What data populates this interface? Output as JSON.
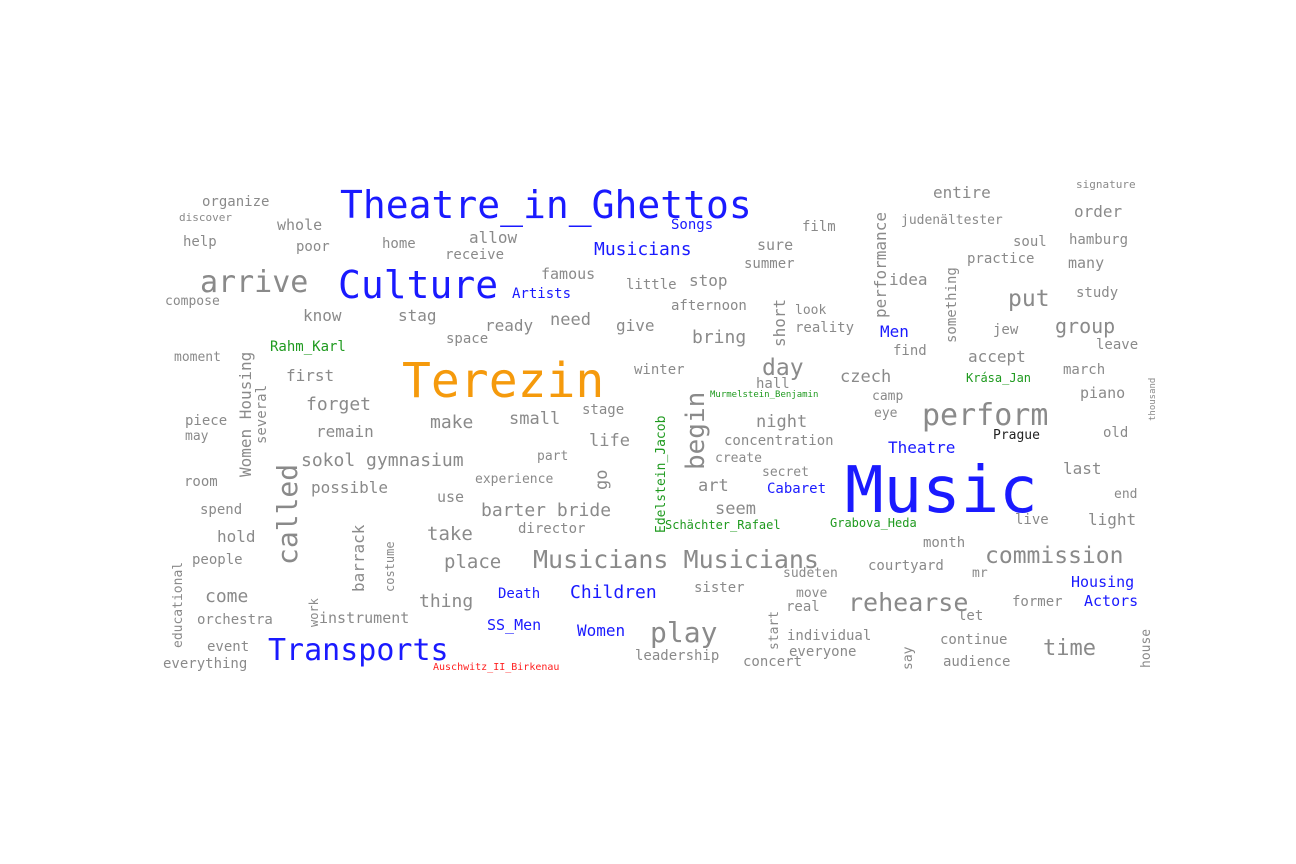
{
  "colors": {
    "background": "#ffffff",
    "plain": "#8a8a8a",
    "topic": "#1a1aff",
    "person": "#1f9a1f",
    "place_main": "#f59a0c",
    "camp": "#ff2020",
    "dark": "#222222"
  },
  "words": [
    {
      "text": "Music",
      "color": "topic"
    },
    {
      "text": "Terezin",
      "color": "place_main"
    },
    {
      "text": "Theatre_in_Ghettos",
      "color": "topic"
    },
    {
      "text": "Culture",
      "color": "topic"
    },
    {
      "text": "Transports",
      "color": "topic"
    },
    {
      "text": "arrive",
      "color": "plain"
    },
    {
      "text": "perform",
      "color": "plain"
    },
    {
      "text": "Musicians Musicians",
      "color": "plain"
    },
    {
      "text": "play",
      "color": "plain"
    },
    {
      "text": "rehearse",
      "color": "plain"
    },
    {
      "text": "commission",
      "color": "plain"
    },
    {
      "text": "called",
      "color": "plain"
    },
    {
      "text": "begin",
      "color": "plain"
    },
    {
      "text": "day",
      "color": "plain"
    },
    {
      "text": "put",
      "color": "plain"
    },
    {
      "text": "group",
      "color": "plain"
    },
    {
      "text": "time",
      "color": "plain"
    },
    {
      "text": "Musicians",
      "color": "topic"
    },
    {
      "text": "Children",
      "color": "topic"
    },
    {
      "text": "Women",
      "color": "topic"
    },
    {
      "text": "Death",
      "color": "topic"
    },
    {
      "text": "SS_Men",
      "color": "topic"
    },
    {
      "text": "Artists",
      "color": "topic"
    },
    {
      "text": "Men",
      "color": "topic"
    },
    {
      "text": "Theatre",
      "color": "topic"
    },
    {
      "text": "Cabaret",
      "color": "topic"
    },
    {
      "text": "Housing",
      "color": "topic"
    },
    {
      "text": "Actors",
      "color": "topic"
    },
    {
      "text": "Songs",
      "color": "topic"
    },
    {
      "text": "Auschwitz_II_Birkenau",
      "color": "camp"
    },
    {
      "text": "Rahm_Karl",
      "color": "person"
    },
    {
      "text": "Krása_Jan",
      "color": "person"
    },
    {
      "text": "Edelstein_Jacob",
      "color": "person"
    },
    {
      "text": "Schächter_Rafael",
      "color": "person"
    },
    {
      "text": "Grabova_Heda",
      "color": "person"
    },
    {
      "text": "Murmelstein_Benjamin",
      "color": "person"
    },
    {
      "text": "Prague",
      "color": "dark"
    },
    {
      "text": "sokol gymnasium",
      "color": "plain"
    },
    {
      "text": "barter bride",
      "color": "plain"
    },
    {
      "text": "place",
      "color": "plain"
    },
    {
      "text": "take",
      "color": "plain"
    },
    {
      "text": "thing",
      "color": "plain"
    },
    {
      "text": "come",
      "color": "plain"
    },
    {
      "text": "orchestra",
      "color": "plain"
    },
    {
      "text": "instrument",
      "color": "plain"
    },
    {
      "text": "hold",
      "color": "plain"
    },
    {
      "text": "people",
      "color": "plain"
    },
    {
      "text": "spend",
      "color": "plain"
    },
    {
      "text": "room",
      "color": "plain"
    },
    {
      "text": "piece",
      "color": "plain"
    },
    {
      "text": "may",
      "color": "plain"
    },
    {
      "text": "forget",
      "color": "plain"
    },
    {
      "text": "remain",
      "color": "plain"
    },
    {
      "text": "first",
      "color": "plain"
    },
    {
      "text": "make",
      "color": "plain"
    },
    {
      "text": "small",
      "color": "plain"
    },
    {
      "text": "life",
      "color": "plain"
    },
    {
      "text": "part",
      "color": "plain"
    },
    {
      "text": "stage",
      "color": "plain"
    },
    {
      "text": "possible",
      "color": "plain"
    },
    {
      "text": "use",
      "color": "plain"
    },
    {
      "text": "experience",
      "color": "plain"
    },
    {
      "text": "director",
      "color": "plain"
    },
    {
      "text": "art",
      "color": "plain"
    },
    {
      "text": "seem",
      "color": "plain"
    },
    {
      "text": "create",
      "color": "plain"
    },
    {
      "text": "secret",
      "color": "plain"
    },
    {
      "text": "night",
      "color": "plain"
    },
    {
      "text": "concentration",
      "color": "plain"
    },
    {
      "text": "hall",
      "color": "plain"
    },
    {
      "text": "czech",
      "color": "plain"
    },
    {
      "text": "camp",
      "color": "plain"
    },
    {
      "text": "eye",
      "color": "plain"
    },
    {
      "text": "winter",
      "color": "plain"
    },
    {
      "text": "bring",
      "color": "plain"
    },
    {
      "text": "give",
      "color": "plain"
    },
    {
      "text": "need",
      "color": "plain"
    },
    {
      "text": "ready",
      "color": "plain"
    },
    {
      "text": "space",
      "color": "plain"
    },
    {
      "text": "stag",
      "color": "plain"
    },
    {
      "text": "know",
      "color": "plain"
    },
    {
      "text": "famous",
      "color": "plain"
    },
    {
      "text": "little",
      "color": "plain"
    },
    {
      "text": "stop",
      "color": "plain"
    },
    {
      "text": "afternoon",
      "color": "plain"
    },
    {
      "text": "receive",
      "color": "plain"
    },
    {
      "text": "allow",
      "color": "plain"
    },
    {
      "text": "home",
      "color": "plain"
    },
    {
      "text": "poor",
      "color": "plain"
    },
    {
      "text": "whole",
      "color": "plain"
    },
    {
      "text": "organize",
      "color": "plain"
    },
    {
      "text": "discover",
      "color": "plain"
    },
    {
      "text": "help",
      "color": "plain"
    },
    {
      "text": "compose",
      "color": "plain"
    },
    {
      "text": "moment",
      "color": "plain"
    },
    {
      "text": "film",
      "color": "plain"
    },
    {
      "text": "sure",
      "color": "plain"
    },
    {
      "text": "summer",
      "color": "plain"
    },
    {
      "text": "look",
      "color": "plain"
    },
    {
      "text": "reality",
      "color": "plain"
    },
    {
      "text": "find",
      "color": "plain"
    },
    {
      "text": "idea",
      "color": "plain"
    },
    {
      "text": "entire",
      "color": "plain"
    },
    {
      "text": "judenältester",
      "color": "plain"
    },
    {
      "text": "order",
      "color": "plain"
    },
    {
      "text": "soul",
      "color": "plain"
    },
    {
      "text": "hamburg",
      "color": "plain"
    },
    {
      "text": "practice",
      "color": "plain"
    },
    {
      "text": "many",
      "color": "plain"
    },
    {
      "text": "study",
      "color": "plain"
    },
    {
      "text": "jew",
      "color": "plain"
    },
    {
      "text": "leave",
      "color": "plain"
    },
    {
      "text": "accept",
      "color": "plain"
    },
    {
      "text": "march",
      "color": "plain"
    },
    {
      "text": "piano",
      "color": "plain"
    },
    {
      "text": "old",
      "color": "plain"
    },
    {
      "text": "last",
      "color": "plain"
    },
    {
      "text": "end",
      "color": "plain"
    },
    {
      "text": "light",
      "color": "plain"
    },
    {
      "text": "live",
      "color": "plain"
    },
    {
      "text": "month",
      "color": "plain"
    },
    {
      "text": "courtyard",
      "color": "plain"
    },
    {
      "text": "sudeten",
      "color": "plain"
    },
    {
      "text": "sister",
      "color": "plain"
    },
    {
      "text": "mr",
      "color": "plain"
    },
    {
      "text": "let",
      "color": "plain"
    },
    {
      "text": "former",
      "color": "plain"
    },
    {
      "text": "real",
      "color": "plain"
    },
    {
      "text": "move",
      "color": "plain"
    },
    {
      "text": "individual",
      "color": "plain"
    },
    {
      "text": "everyone",
      "color": "plain"
    },
    {
      "text": "continue",
      "color": "plain"
    },
    {
      "text": "audience",
      "color": "plain"
    },
    {
      "text": "concert",
      "color": "plain"
    },
    {
      "text": "leadership",
      "color": "plain"
    },
    {
      "text": "event",
      "color": "plain"
    },
    {
      "text": "everything",
      "color": "plain"
    },
    {
      "text": "Women Housing",
      "color": "plain"
    },
    {
      "text": "several",
      "color": "plain"
    },
    {
      "text": "barrack",
      "color": "plain"
    },
    {
      "text": "costume",
      "color": "plain"
    },
    {
      "text": "work",
      "color": "plain"
    },
    {
      "text": "educational",
      "color": "plain"
    },
    {
      "text": "go",
      "color": "plain"
    },
    {
      "text": "short",
      "color": "plain"
    },
    {
      "text": "performance",
      "color": "plain"
    },
    {
      "text": "something",
      "color": "plain"
    },
    {
      "text": "start",
      "color": "plain"
    },
    {
      "text": "say",
      "color": "plain"
    },
    {
      "text": "house",
      "color": "plain"
    },
    {
      "text": "signature",
      "color": "plain"
    },
    {
      "text": "thousand",
      "color": "plain"
    }
  ]
}
